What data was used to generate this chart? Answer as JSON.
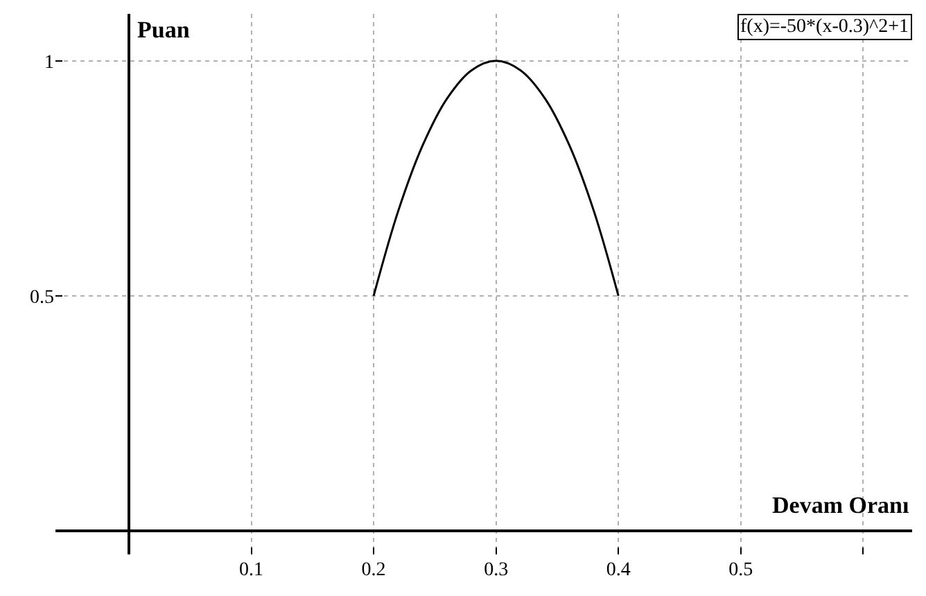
{
  "chart_data": {
    "type": "line",
    "xlabel": "Devam Oranı",
    "ylabel": "Puan",
    "x": [
      0.2,
      0.22,
      0.24,
      0.26,
      0.28,
      0.3,
      0.32,
      0.34,
      0.36,
      0.38,
      0.4
    ],
    "series": [
      {
        "color": "#000000",
        "values": [
          0.5,
          0.68,
          0.82,
          0.92,
          0.98,
          1,
          0.98,
          0.92,
          0.82,
          0.68,
          0.5
        ]
      }
    ],
    "xlim": [
      -0.06,
      0.64
    ],
    "ylim": [
      -0.05,
      1.1
    ],
    "xticks": [
      0.1,
      0.2,
      0.3,
      0.4,
      0.5,
      {
        "value": 0.6,
        "label": null
      }
    ],
    "yticks": [
      0.5,
      1
    ],
    "grid": true,
    "legend": false,
    "marker": "none",
    "line_style": "solid",
    "annotations": [
      "f(x)=-50*(x-0.3)^2+1"
    ]
  }
}
